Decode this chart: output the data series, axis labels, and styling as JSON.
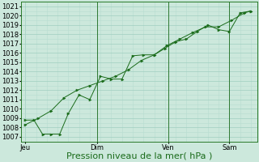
{
  "bg_color": "#cce8dc",
  "grid_color_minor": "#b8ddd0",
  "grid_color_major": "#a0cfc0",
  "line_color": "#1a6b1a",
  "marker_color": "#1a6b1a",
  "xlabel": "Pression niveau de la mer( hPa )",
  "ylim": [
    1006.5,
    1021.5
  ],
  "yticks": [
    1007,
    1008,
    1009,
    1010,
    1011,
    1012,
    1013,
    1014,
    1015,
    1016,
    1017,
    1018,
    1019,
    1020,
    1021
  ],
  "xtick_labels": [
    "Jeu",
    "Dim",
    "Ven",
    "Sam"
  ],
  "xtick_positions": [
    0.0,
    3.33,
    6.67,
    9.5
  ],
  "xlim": [
    -0.2,
    10.8
  ],
  "vline_positions": [
    3.33,
    6.67,
    9.5
  ],
  "series1_x": [
    0.0,
    0.4,
    0.8,
    1.2,
    1.6,
    2.0,
    2.5,
    3.0,
    3.5,
    4.0,
    4.5,
    5.0,
    5.5,
    6.0,
    6.5,
    7.0,
    7.5,
    8.0,
    8.5,
    9.0,
    9.5,
    10.0,
    10.5
  ],
  "series1_y": [
    1008.8,
    1008.8,
    1007.3,
    1007.3,
    1007.3,
    1009.5,
    1011.5,
    1011.0,
    1013.5,
    1013.2,
    1013.2,
    1015.7,
    1015.8,
    1015.8,
    1016.5,
    1017.2,
    1017.5,
    1018.3,
    1019.0,
    1018.5,
    1018.3,
    1020.3,
    1020.5
  ],
  "series2_x": [
    0.0,
    0.6,
    1.2,
    1.8,
    2.4,
    3.0,
    3.6,
    4.2,
    4.8,
    5.4,
    6.0,
    6.6,
    7.2,
    7.8,
    8.4,
    9.0,
    9.6,
    10.2,
    10.5
  ],
  "series2_y": [
    1008.3,
    1009.0,
    1009.8,
    1011.2,
    1012.0,
    1012.5,
    1013.0,
    1013.5,
    1014.2,
    1015.2,
    1015.8,
    1016.8,
    1017.5,
    1018.2,
    1018.8,
    1018.8,
    1019.5,
    1020.3,
    1020.5
  ],
  "xlabel_fontsize": 8,
  "tick_fontsize": 6,
  "linewidth": 0.7,
  "markersize": 2.2
}
